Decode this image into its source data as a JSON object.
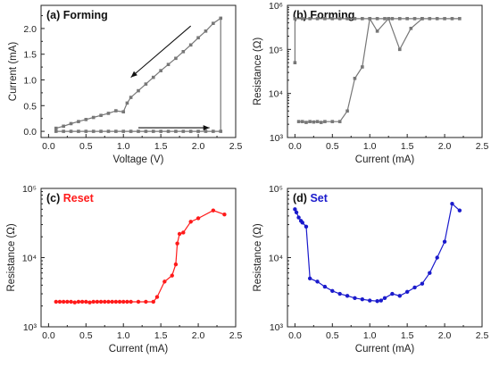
{
  "chart_data": [
    {
      "panel": "a",
      "type": "line",
      "title": "(a) Forming",
      "title_color": "#111111",
      "xlabel": "Voltage (V)",
      "ylabel": "Current (mA)",
      "xlim": [
        -0.1,
        2.5
      ],
      "ylim": [
        -0.12,
        2.45
      ],
      "yscale": "linear",
      "xticks": [
        "0.0",
        "0.5",
        "1.0",
        "1.5",
        "2.0",
        "2.5"
      ],
      "xtick_values": [
        0,
        0.5,
        1.0,
        1.5,
        2.0,
        2.5
      ],
      "yticks": [
        "0.0",
        "0.5",
        "1.0",
        "1.5",
        "2.0"
      ],
      "ytick_values": [
        0,
        0.5,
        1.0,
        1.5,
        2.0
      ],
      "color": "#777777",
      "marker": "square",
      "series": [
        {
          "x": [
            0.1,
            0.2,
            0.3,
            0.4,
            0.5,
            0.6,
            0.7,
            0.8,
            0.9,
            1.0,
            1.1,
            1.2,
            1.3,
            1.4,
            1.5,
            1.6,
            1.7,
            1.8,
            1.9,
            2.0,
            2.1,
            2.2,
            2.3,
            2.3,
            2.2,
            2.1,
            2.0,
            1.9,
            1.8,
            1.7,
            1.6,
            1.5,
            1.4,
            1.3,
            1.2,
            1.1,
            1.05,
            1.0,
            0.9,
            0.8,
            0.7,
            0.6,
            0.5,
            0.4,
            0.3,
            0.2,
            0.1
          ],
          "y": [
            0.0,
            0.0,
            0.0,
            0.0,
            0.0,
            0.0,
            0.0,
            0.0,
            0.0,
            0.0,
            0.0,
            0.0,
            0.0,
            0.0,
            0.0,
            0.0,
            0.0,
            0.0,
            0.0,
            0.0,
            0.0,
            0.0,
            0.0,
            2.2,
            2.1,
            1.95,
            1.82,
            1.68,
            1.55,
            1.42,
            1.3,
            1.18,
            1.05,
            0.92,
            0.79,
            0.66,
            0.55,
            0.38,
            0.4,
            0.35,
            0.31,
            0.27,
            0.23,
            0.19,
            0.15,
            0.1,
            0.06
          ]
        }
      ],
      "arrows": [
        {
          "from": [
            1.9,
            2.05
          ],
          "to": [
            1.1,
            1.05
          ]
        },
        {
          "from": [
            1.2,
            0.07
          ],
          "to": [
            2.15,
            0.07
          ]
        }
      ]
    },
    {
      "panel": "b",
      "type": "line",
      "title": "(b) Forming",
      "title_color": "#111111",
      "xlabel": "Current (mA)",
      "ylabel": "Resistance (Ω)",
      "xlim": [
        -0.1,
        2.5
      ],
      "ylim": [
        1000,
        1000000
      ],
      "yscale": "log",
      "xticks": [
        "0.0",
        "0.5",
        "1.0",
        "1.5",
        "2.0",
        "2.5"
      ],
      "xtick_values": [
        0,
        0.5,
        1.0,
        1.5,
        2.0,
        2.5
      ],
      "yticks": [
        "10³",
        "10⁴",
        "10⁵",
        "10⁶"
      ],
      "ytick_values": [
        1000,
        10000,
        100000,
        1000000
      ],
      "color": "#777777",
      "marker": "square",
      "series": [
        {
          "x": [
            0.0,
            0.0,
            0.1,
            0.2,
            0.3,
            0.4,
            0.5,
            0.6,
            0.7,
            0.8,
            0.9,
            1.0,
            1.1,
            1.2,
            1.3,
            1.4,
            1.5,
            1.6,
            1.7,
            1.8,
            1.9,
            2.0,
            2.1,
            2.2
          ],
          "y": [
            50000,
            500000,
            500000,
            500000,
            500000,
            500000,
            500000,
            500000,
            500000,
            500000,
            500000,
            500000,
            500000,
            500000,
            500000,
            500000,
            500000,
            500000,
            500000,
            500000,
            500000,
            500000,
            500000,
            500000
          ]
        },
        {
          "x": [
            0.05,
            0.1,
            0.15,
            0.2,
            0.25,
            0.3,
            0.35,
            0.4,
            0.5,
            0.6,
            0.7,
            0.8,
            0.9,
            1.0,
            1.1,
            1.25,
            1.4,
            1.55,
            1.7
          ],
          "y": [
            2300,
            2300,
            2200,
            2300,
            2250,
            2300,
            2200,
            2300,
            2300,
            2300,
            4000,
            22000,
            40000,
            500000,
            260000,
            500000,
            100000,
            300000,
            500000
          ]
        }
      ]
    },
    {
      "panel": "c",
      "type": "line",
      "title": "(c) ",
      "title_color": "#111111",
      "title_highlight": "Reset",
      "title_highlight_color": "#ff1a1a",
      "xlabel": "Current (mA)",
      "ylabel": "Resistance (Ω)",
      "xlim": [
        -0.1,
        2.5
      ],
      "ylim": [
        1000,
        100000
      ],
      "yscale": "log",
      "xticks": [
        "0.0",
        "0.5",
        "1.0",
        "1.5",
        "2.0",
        "2.5"
      ],
      "xtick_values": [
        0,
        0.5,
        1.0,
        1.5,
        2.0,
        2.5
      ],
      "yticks": [
        "10³",
        "10⁴",
        "10⁵"
      ],
      "ytick_values": [
        1000,
        10000,
        100000
      ],
      "color": "#ff1a1a",
      "marker": "circle",
      "series": [
        {
          "x": [
            0.1,
            0.15,
            0.2,
            0.25,
            0.3,
            0.35,
            0.4,
            0.45,
            0.5,
            0.55,
            0.6,
            0.65,
            0.7,
            0.75,
            0.8,
            0.85,
            0.9,
            0.95,
            1.0,
            1.05,
            1.1,
            1.2,
            1.3,
            1.4,
            1.45,
            1.55,
            1.65,
            1.7,
            1.72,
            1.75,
            1.8,
            1.9,
            2.0,
            2.2,
            2.35
          ],
          "y": [
            2300,
            2300,
            2300,
            2300,
            2300,
            2250,
            2300,
            2300,
            2300,
            2250,
            2300,
            2300,
            2300,
            2300,
            2300,
            2300,
            2300,
            2300,
            2300,
            2300,
            2300,
            2300,
            2300,
            2300,
            2700,
            4500,
            5500,
            8000,
            16000,
            22000,
            23000,
            33000,
            37000,
            48000,
            42000
          ]
        }
      ]
    },
    {
      "panel": "d",
      "type": "line",
      "title": "(d) ",
      "title_color": "#111111",
      "title_highlight": "Set",
      "title_highlight_color": "#1a1acc",
      "xlabel": "Current (mA)",
      "ylabel": "Resistance (Ω)",
      "xlim": [
        -0.1,
        2.5
      ],
      "ylim": [
        1000,
        100000
      ],
      "yscale": "log",
      "xticks": [
        "0.0",
        "0.5",
        "1.0",
        "1.5",
        "2.0",
        "2.5"
      ],
      "xtick_values": [
        0,
        0.5,
        1.0,
        1.5,
        2.0,
        2.5
      ],
      "yticks": [
        "10³",
        "10⁴",
        "10⁵"
      ],
      "ytick_values": [
        1000,
        10000,
        100000
      ],
      "color": "#1a1acc",
      "marker": "circle",
      "series": [
        {
          "x": [
            0.0,
            0.02,
            0.05,
            0.08,
            0.1,
            0.15,
            0.2,
            0.3,
            0.4,
            0.5,
            0.6,
            0.7,
            0.8,
            0.9,
            1.0,
            1.1,
            1.15,
            1.2,
            1.3,
            1.4,
            1.5,
            1.6,
            1.7,
            1.8,
            1.9,
            2.0,
            2.1,
            2.2
          ],
          "y": [
            50000,
            45000,
            38000,
            34000,
            32000,
            28000,
            5000,
            4500,
            3800,
            3300,
            3000,
            2800,
            2600,
            2500,
            2400,
            2350,
            2400,
            2600,
            3000,
            2800,
            3200,
            3700,
            4200,
            6000,
            10000,
            17000,
            60000,
            48000
          ]
        }
      ]
    }
  ]
}
